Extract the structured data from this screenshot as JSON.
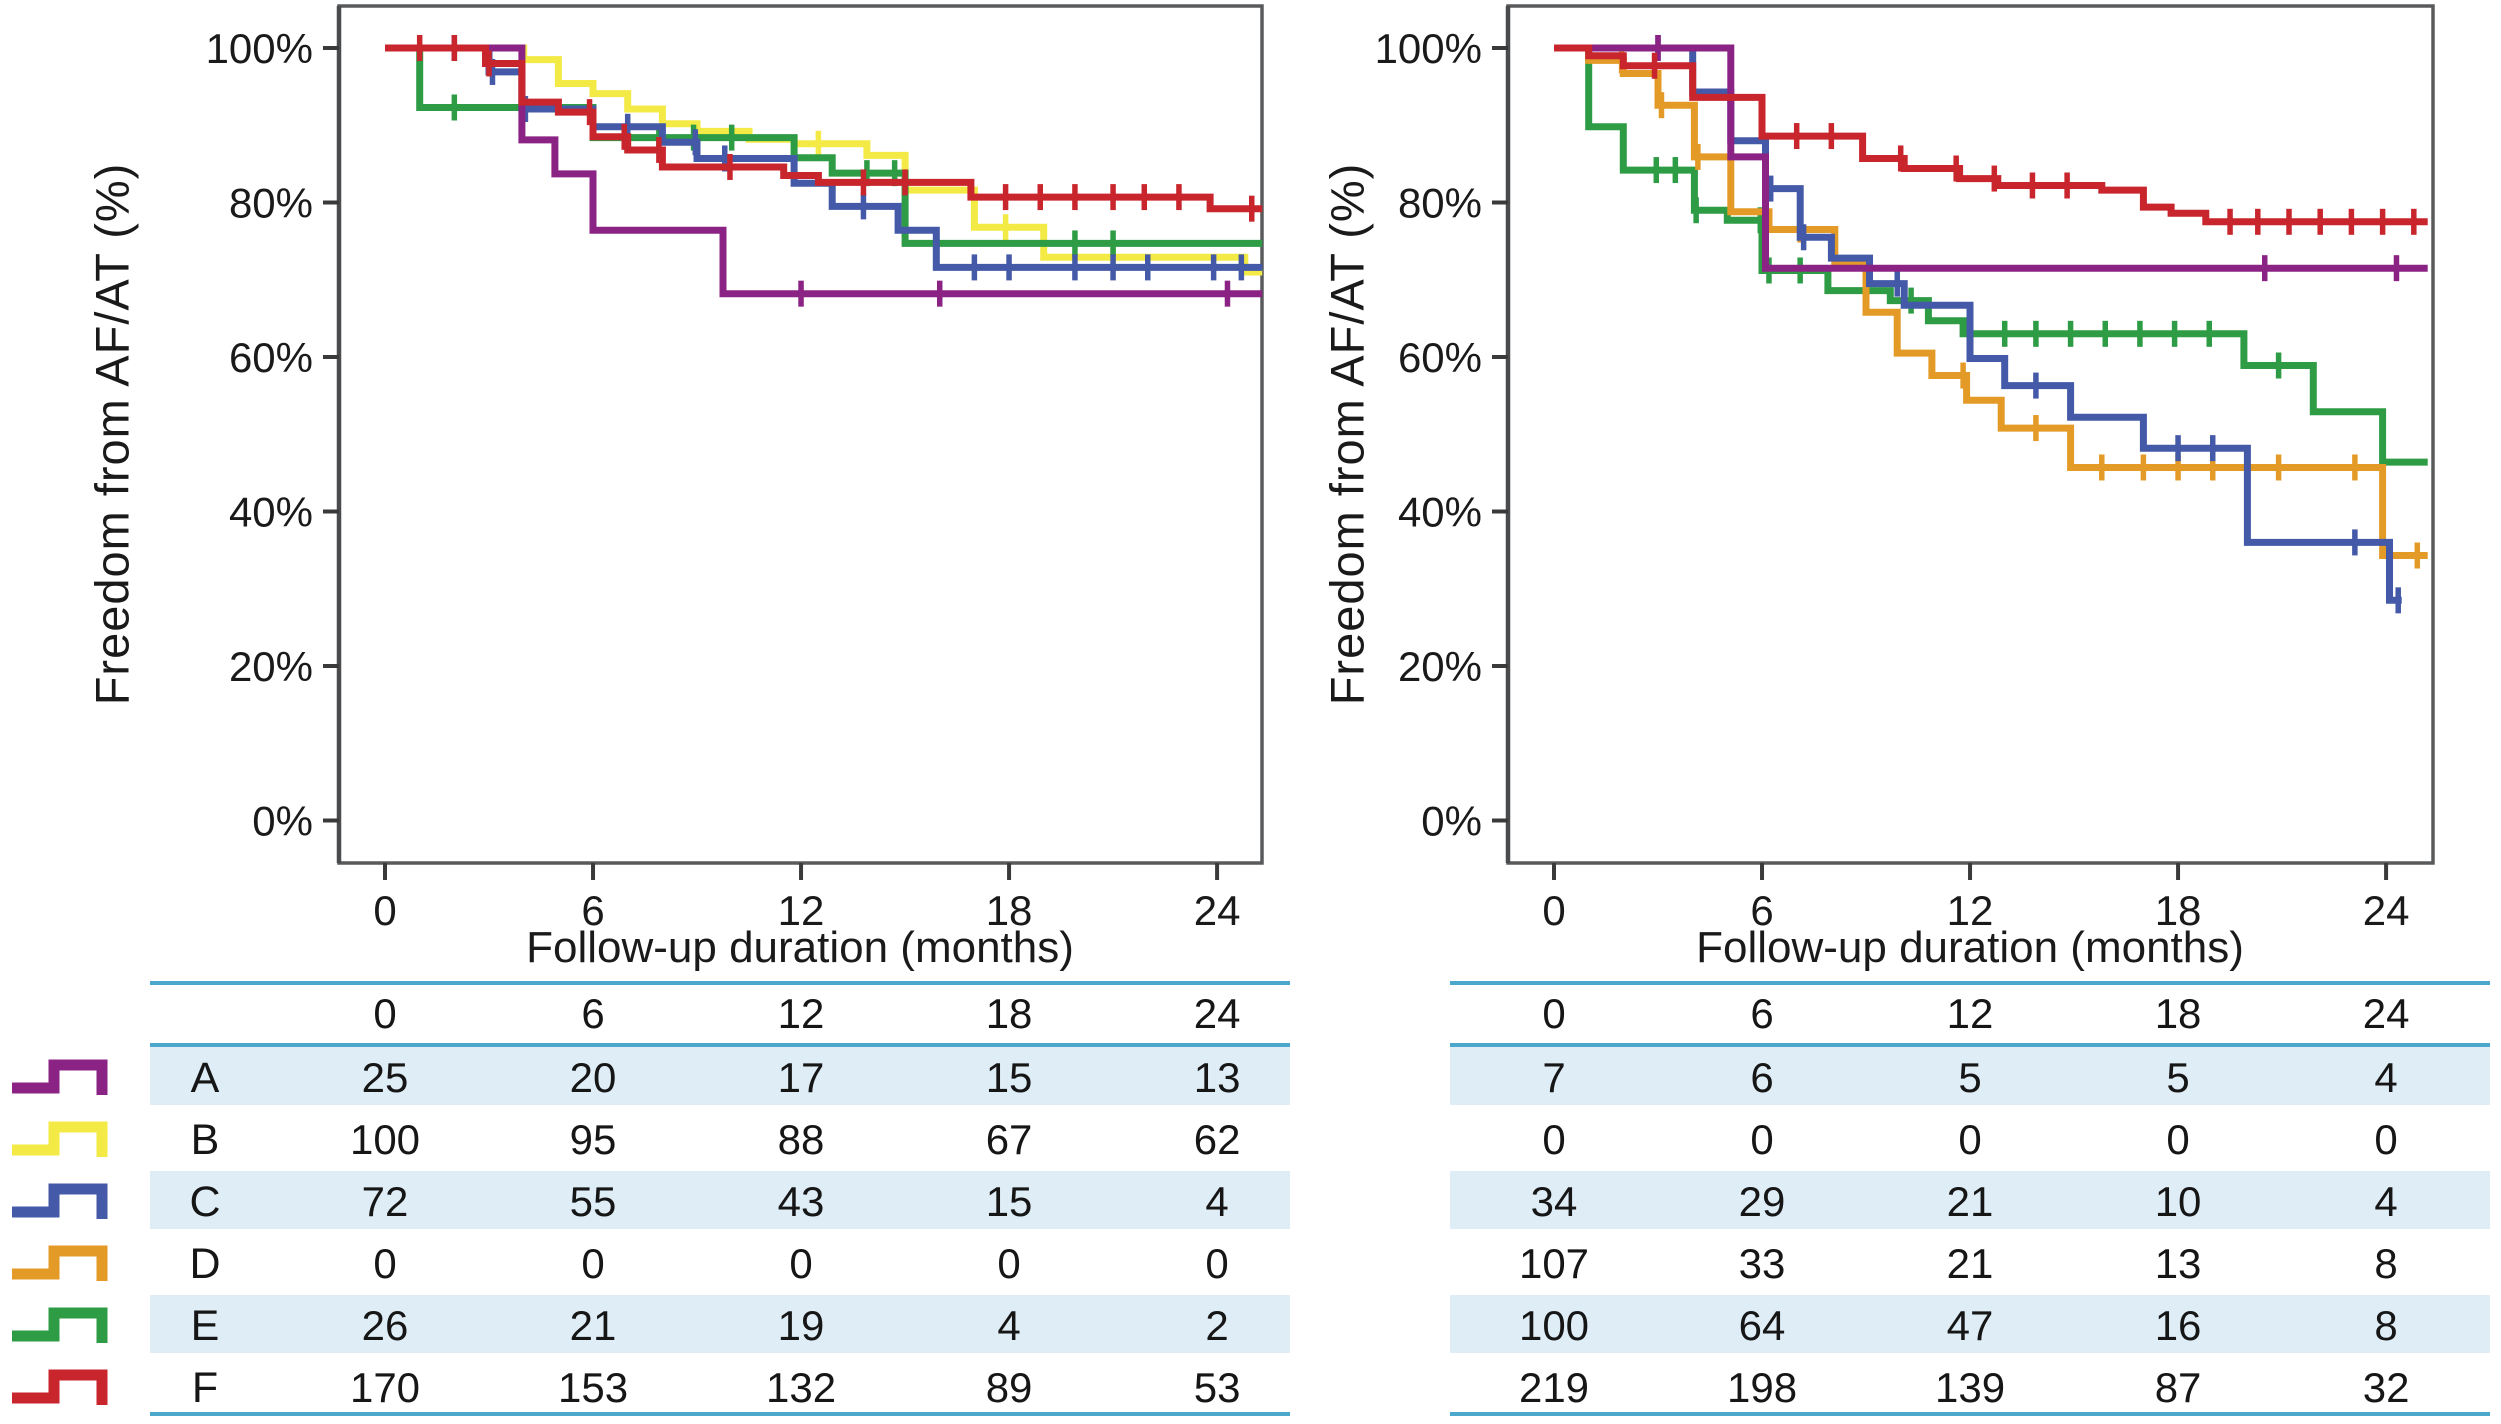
{
  "figure": {
    "y_axis_title": "Freedom from AF/AT (%)",
    "x_axis_title": "Follow-up duration (months)"
  },
  "colors": {
    "A": "#8B2385",
    "B": "#F3EA45",
    "C": "#4459A7",
    "D": "#E49A26",
    "E": "#2E9B45",
    "F": "#C8252D",
    "table_rule": "#4BA7CC",
    "table_band": "#DFEDF7",
    "plot_border": "#595A5C",
    "tick": "#3a3a3a",
    "text": "#1a1a1a"
  },
  "groups": [
    {
      "id": "A"
    },
    {
      "id": "B"
    },
    {
      "id": "C"
    },
    {
      "id": "D"
    },
    {
      "id": "E"
    },
    {
      "id": "F"
    }
  ],
  "chart_data": [
    {
      "type": "line",
      "subtype": "kaplan-meier-step",
      "title": "",
      "ylabel": "Freedom from AF/AT (%)",
      "xlabel": "Follow-up duration (months)",
      "xlim": [
        -1.35,
        25.3
      ],
      "ylim": [
        -5.5,
        105.5
      ],
      "grid": false,
      "x_ticks": [
        0,
        6,
        12,
        18,
        24
      ],
      "y_ticks": [
        {
          "label": "100%",
          "value": 100
        },
        {
          "label": "80%",
          "value": 80
        },
        {
          "label": "60%",
          "value": 60
        },
        {
          "label": "40%",
          "value": 40
        },
        {
          "label": "20%",
          "value": 20
        },
        {
          "label": "0%",
          "value": 0
        }
      ],
      "series": [
        {
          "group": "B",
          "steps": [
            [
              0,
              100
            ],
            [
              4,
              98.5
            ],
            [
              5,
              95.4
            ],
            [
              6,
              94.1
            ],
            [
              7,
              92.1
            ],
            [
              8,
              90.2
            ],
            [
              9,
              89.2
            ],
            [
              10.5,
              88.2
            ],
            [
              11.8,
              87.6
            ],
            [
              13.9,
              86.1
            ],
            [
              15,
              81.6
            ],
            [
              17,
              76.8
            ],
            [
              19,
              72.9
            ],
            [
              24.8,
              71
            ]
          ],
          "end": 25.3,
          "censors": [
            12.5,
            17.9,
            21
          ]
        },
        {
          "group": "E",
          "steps": [
            [
              0,
              100
            ],
            [
              1,
              92.3
            ],
            [
              6,
              88.4
            ],
            [
              11.8,
              85.8
            ],
            [
              12.9,
              83.8
            ],
            [
              15,
              74.7
            ]
          ],
          "end": 25.3,
          "censors": [
            2,
            7.9,
            8.9,
            10,
            13.9,
            14.7,
            19.9,
            21
          ]
        },
        {
          "group": "C",
          "steps": [
            [
              0,
              100
            ],
            [
              3,
              96.9
            ],
            [
              3.95,
              92.1
            ],
            [
              6,
              89.8
            ],
            [
              8,
              87.8
            ],
            [
              9,
              85.7
            ],
            [
              11.8,
              82.5
            ],
            [
              12.9,
              79.5
            ],
            [
              14.8,
              76.4
            ],
            [
              15.9,
              71.6
            ]
          ],
          "end": 25.3,
          "censors": [
            2,
            3.1,
            4.05,
            7,
            8.95,
            9.8,
            13.8,
            17,
            18,
            19.9,
            21,
            22,
            23.9,
            24.7
          ]
        },
        {
          "group": "A",
          "steps": [
            [
              0,
              100
            ],
            [
              3.95,
              88.1
            ],
            [
              4.9,
              83.7
            ],
            [
              6,
              76.4
            ],
            [
              9.75,
              68.2
            ]
          ],
          "end": 25.3,
          "censors": [
            12,
            16,
            24.3
          ]
        },
        {
          "group": "F",
          "steps": [
            [
              0,
              100
            ],
            [
              2.9,
              98
            ],
            [
              3.95,
              93
            ],
            [
              5,
              91.7
            ],
            [
              6,
              88.5
            ],
            [
              7,
              86.8
            ],
            [
              8,
              84.6
            ],
            [
              11.5,
              83.5
            ],
            [
              12.5,
              82.6
            ],
            [
              16.9,
              80.7
            ],
            [
              23.8,
              79.2
            ]
          ],
          "end": 25.3,
          "censors": [
            1,
            2,
            3,
            5.9,
            6.9,
            7.9,
            9.95,
            13.8,
            15,
            17.9,
            18.9,
            19.9,
            21,
            21.9,
            22.9,
            25
          ]
        }
      ],
      "risk_table": {
        "columns": [
          "0",
          "6",
          "12",
          "18",
          "24"
        ],
        "rows": [
          {
            "group": "A",
            "values": [
              "25",
              "20",
              "17",
              "15",
              "13"
            ]
          },
          {
            "group": "B",
            "values": [
              "100",
              "95",
              "88",
              "67",
              "62"
            ]
          },
          {
            "group": "C",
            "values": [
              "72",
              "55",
              "43",
              "15",
              "4"
            ]
          },
          {
            "group": "D",
            "values": [
              "0",
              "0",
              "0",
              "0",
              "0"
            ]
          },
          {
            "group": "E",
            "values": [
              "26",
              "21",
              "19",
              "4",
              "2"
            ]
          },
          {
            "group": "F",
            "values": [
              "170",
              "153",
              "132",
              "89",
              "53"
            ]
          }
        ]
      }
    },
    {
      "type": "line",
      "subtype": "kaplan-meier-step",
      "title": "",
      "ylabel": "Freedom from AF/AT (%)",
      "xlabel": "Follow-up duration (months)",
      "xlim": [
        -1.3,
        25.2
      ],
      "ylim": [
        -5.5,
        105.5
      ],
      "grid": false,
      "x_ticks": [
        0,
        6,
        12,
        18,
        24
      ],
      "y_ticks": [
        {
          "label": "100%",
          "value": 100
        },
        {
          "label": "80%",
          "value": 80
        },
        {
          "label": "60%",
          "value": 60
        },
        {
          "label": "40%",
          "value": 40
        },
        {
          "label": "20%",
          "value": 20
        },
        {
          "label": "0%",
          "value": 0
        }
      ],
      "series": [
        {
          "group": "E",
          "steps": [
            [
              0,
              100
            ],
            [
              1,
              89.8
            ],
            [
              2,
              84.2
            ],
            [
              4.05,
              79
            ],
            [
              5,
              77.7
            ],
            [
              6,
              71.2
            ],
            [
              7.9,
              68.6
            ],
            [
              9.7,
              67.3
            ],
            [
              10.8,
              64.7
            ],
            [
              11.8,
              63
            ],
            [
              19.9,
              58.9
            ],
            [
              21.9,
              52.9
            ],
            [
              23.9,
              46.4
            ]
          ],
          "end": 25.2,
          "censors": [
            2.95,
            3.5,
            4.1,
            5.95,
            6.2,
            7.1,
            10.3,
            13,
            13.9,
            14.9,
            15.9,
            16.9,
            17.9,
            18.9,
            20.9
          ]
        },
        {
          "group": "D",
          "steps": [
            [
              0,
              100
            ],
            [
              1,
              98.4
            ],
            [
              2,
              96.7
            ],
            [
              3,
              92.6
            ],
            [
              4.05,
              85.9
            ],
            [
              5.1,
              78.8
            ],
            [
              6.2,
              76.5
            ],
            [
              8.1,
              72
            ],
            [
              9,
              65.8
            ],
            [
              9.9,
              60.5
            ],
            [
              10.9,
              57.6
            ],
            [
              11.9,
              54.4
            ],
            [
              12.9,
              50.8
            ],
            [
              14.9,
              45.7
            ],
            [
              23.9,
              34.3
            ]
          ],
          "end": 25.2,
          "censors": [
            1.95,
            3.1,
            4.15,
            7.1,
            11.8,
            13.9,
            15.8,
            17,
            18,
            19,
            20,
            20.9,
            23.1,
            24.9
          ]
        },
        {
          "group": "C",
          "steps": [
            [
              0,
              100
            ],
            [
              4,
              94.3
            ],
            [
              5.1,
              88
            ],
            [
              6.1,
              81.8
            ],
            [
              7.1,
              75.5
            ],
            [
              8,
              72.8
            ],
            [
              9.1,
              69.5
            ],
            [
              10.1,
              66.7
            ],
            [
              12,
              59.8
            ],
            [
              13,
              56.3
            ],
            [
              14.9,
              52.2
            ],
            [
              17,
              48.2
            ],
            [
              20,
              36
            ],
            [
              24.1,
              28.5
            ]
          ],
          "end": 24.45,
          "censors": [
            3,
            6.25,
            7.2,
            9.9,
            13.9,
            18,
            19,
            23.1,
            24.35
          ]
        },
        {
          "group": "A",
          "steps": [
            [
              0,
              100
            ],
            [
              5.1,
              85.9
            ],
            [
              6.1,
              71.5
            ]
          ],
          "end": 25.2,
          "censors": [
            3,
            20.5,
            24.3
          ]
        },
        {
          "group": "F",
          "steps": [
            [
              0,
              100
            ],
            [
              1,
              99
            ],
            [
              2,
              97.7
            ],
            [
              4,
              93.6
            ],
            [
              6,
              88.6
            ],
            [
              8.9,
              85.7
            ],
            [
              10.1,
              84.4
            ],
            [
              11.7,
              83.1
            ],
            [
              12.8,
              82.2
            ],
            [
              15.8,
              81.6
            ],
            [
              17,
              79.4
            ],
            [
              17.8,
              78.6
            ],
            [
              18.8,
              77.5
            ]
          ],
          "end": 25.2,
          "censors": [
            2.9,
            7,
            8,
            10,
            11.6,
            12.7,
            13.8,
            14.8,
            19.5,
            20.3,
            21.2,
            22.1,
            23,
            23.9,
            24.8
          ]
        }
      ],
      "risk_table": {
        "columns": [
          "0",
          "6",
          "12",
          "18",
          "24"
        ],
        "rows": [
          {
            "group": "A",
            "values": [
              "7",
              "6",
              "5",
              "5",
              "4"
            ]
          },
          {
            "group": "B",
            "values": [
              "0",
              "0",
              "0",
              "0",
              "0"
            ]
          },
          {
            "group": "C",
            "values": [
              "34",
              "29",
              "21",
              "10",
              "4"
            ]
          },
          {
            "group": "D",
            "values": [
              "107",
              "33",
              "21",
              "13",
              "8"
            ]
          },
          {
            "group": "E",
            "values": [
              "100",
              "64",
              "47",
              "16",
              "8"
            ]
          },
          {
            "group": "F",
            "values": [
              "219",
              "198",
              "139",
              "87",
              "32"
            ]
          }
        ]
      }
    }
  ]
}
